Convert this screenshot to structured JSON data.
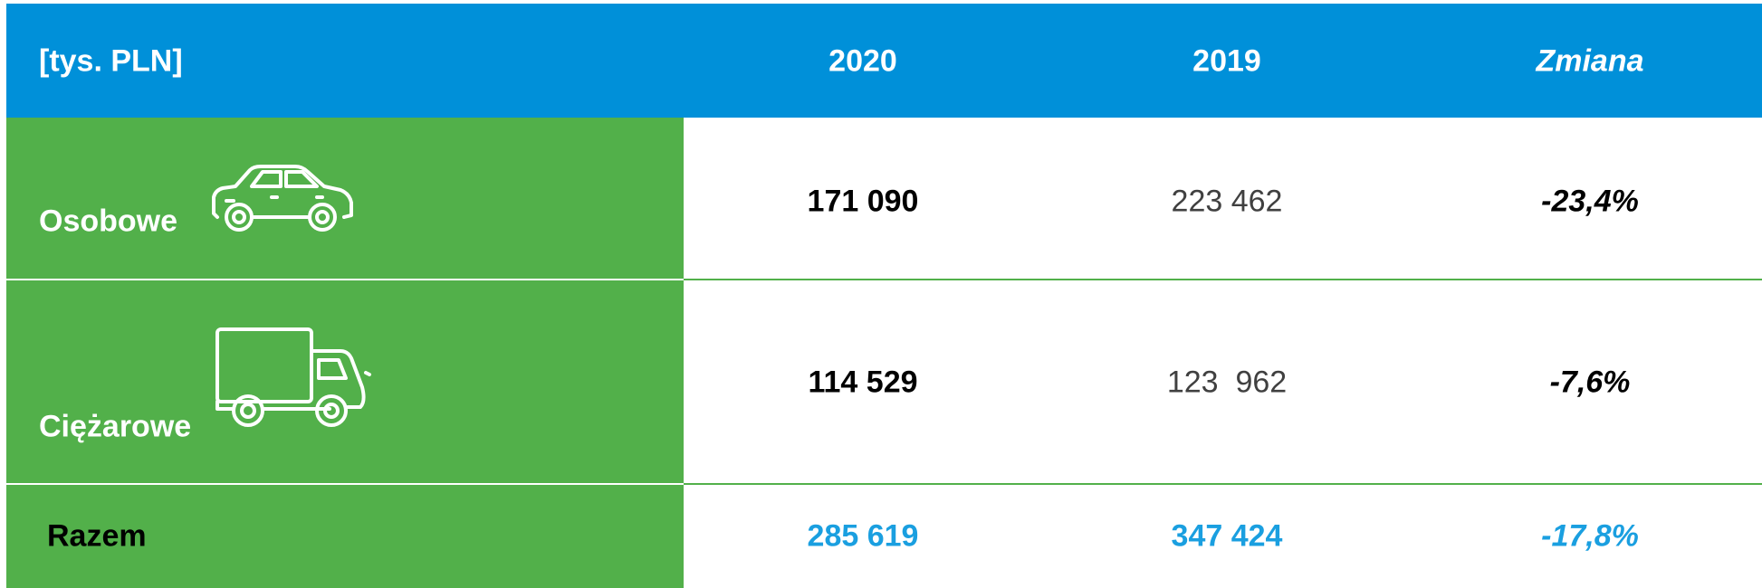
{
  "table": {
    "header": [
      "[tys. PLN]",
      "2020",
      "2019",
      "Zmiana"
    ],
    "rows": [
      [
        "Osobowe",
        "171 090",
        "223 462",
        "-23,4%"
      ],
      [
        "Ciężarowe",
        "114 529",
        "123  962",
        "-7,6%"
      ],
      [
        "Razem",
        "285 619",
        "347 424",
        "-17,8%"
      ]
    ]
  }
}
